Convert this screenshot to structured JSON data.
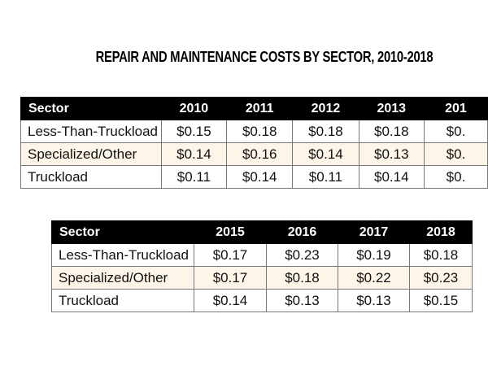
{
  "title": "REPAIR AND MAINTENANCE COSTS BY SECTOR, 2010-2018",
  "tables": [
    {
      "headers": [
        "Sector",
        "2010",
        "2011",
        "2012",
        "2013",
        "201"
      ],
      "rows": [
        [
          "Less-Than-Truckload",
          "$0.15",
          "$0.18",
          "$0.18",
          "$0.18",
          "$0."
        ],
        [
          "Specialized/Other",
          "$0.14",
          "$0.16",
          "$0.14",
          "$0.13",
          "$0."
        ],
        [
          "Truckload",
          "$0.11",
          "$0.14",
          "$0.11",
          "$0.14",
          "$0."
        ]
      ]
    },
    {
      "headers": [
        "Sector",
        "2015",
        "2016",
        "2017",
        "2018"
      ],
      "rows": [
        [
          "Less-Than-Truckload",
          "$0.17",
          "$0.23",
          "$0.19",
          "$0.18"
        ],
        [
          "Specialized/Other",
          "$0.17",
          "$0.18",
          "$0.22",
          "$0.23"
        ],
        [
          "Truckload",
          "$0.14",
          "$0.13",
          "$0.13",
          "$0.15"
        ]
      ]
    }
  ],
  "colors": {
    "header_bg": "#000000",
    "alt_row_bg": "#fdf5e8"
  }
}
